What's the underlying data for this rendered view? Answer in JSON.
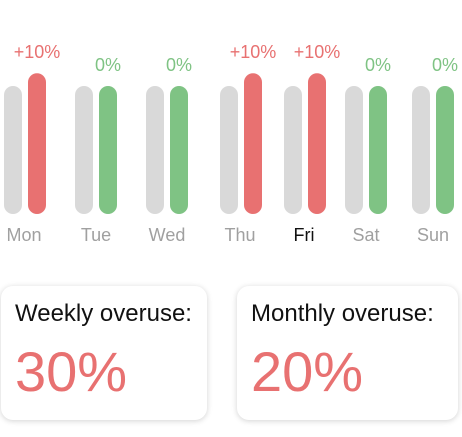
{
  "colors": {
    "over": "#e87171",
    "ok": "#7fc384",
    "baseline": "#d9d9d9",
    "day_label": "#a0a0a0",
    "day_label_active": "#111111"
  },
  "chart_data": {
    "type": "bar",
    "categories": [
      "Mon",
      "Tue",
      "Wed",
      "Thu",
      "Fri",
      "Sat",
      "Sun"
    ],
    "active_category": "Fri",
    "series": [
      {
        "values": [
          100,
          100,
          100,
          100,
          100,
          100,
          100
        ]
      },
      {
        "values": [
          110,
          100,
          100,
          110,
          110,
          100,
          100
        ]
      }
    ],
    "data_labels": [
      "+10%",
      "0%",
      "0%",
      "+10%",
      "+10%",
      "0%",
      "0%"
    ],
    "ylim": [
      0,
      130
    ]
  },
  "summary": {
    "weekly_label": "Weekly overuse:",
    "weekly_value": "30%",
    "monthly_label": "Monthly overuse:",
    "monthly_value": "20%"
  }
}
